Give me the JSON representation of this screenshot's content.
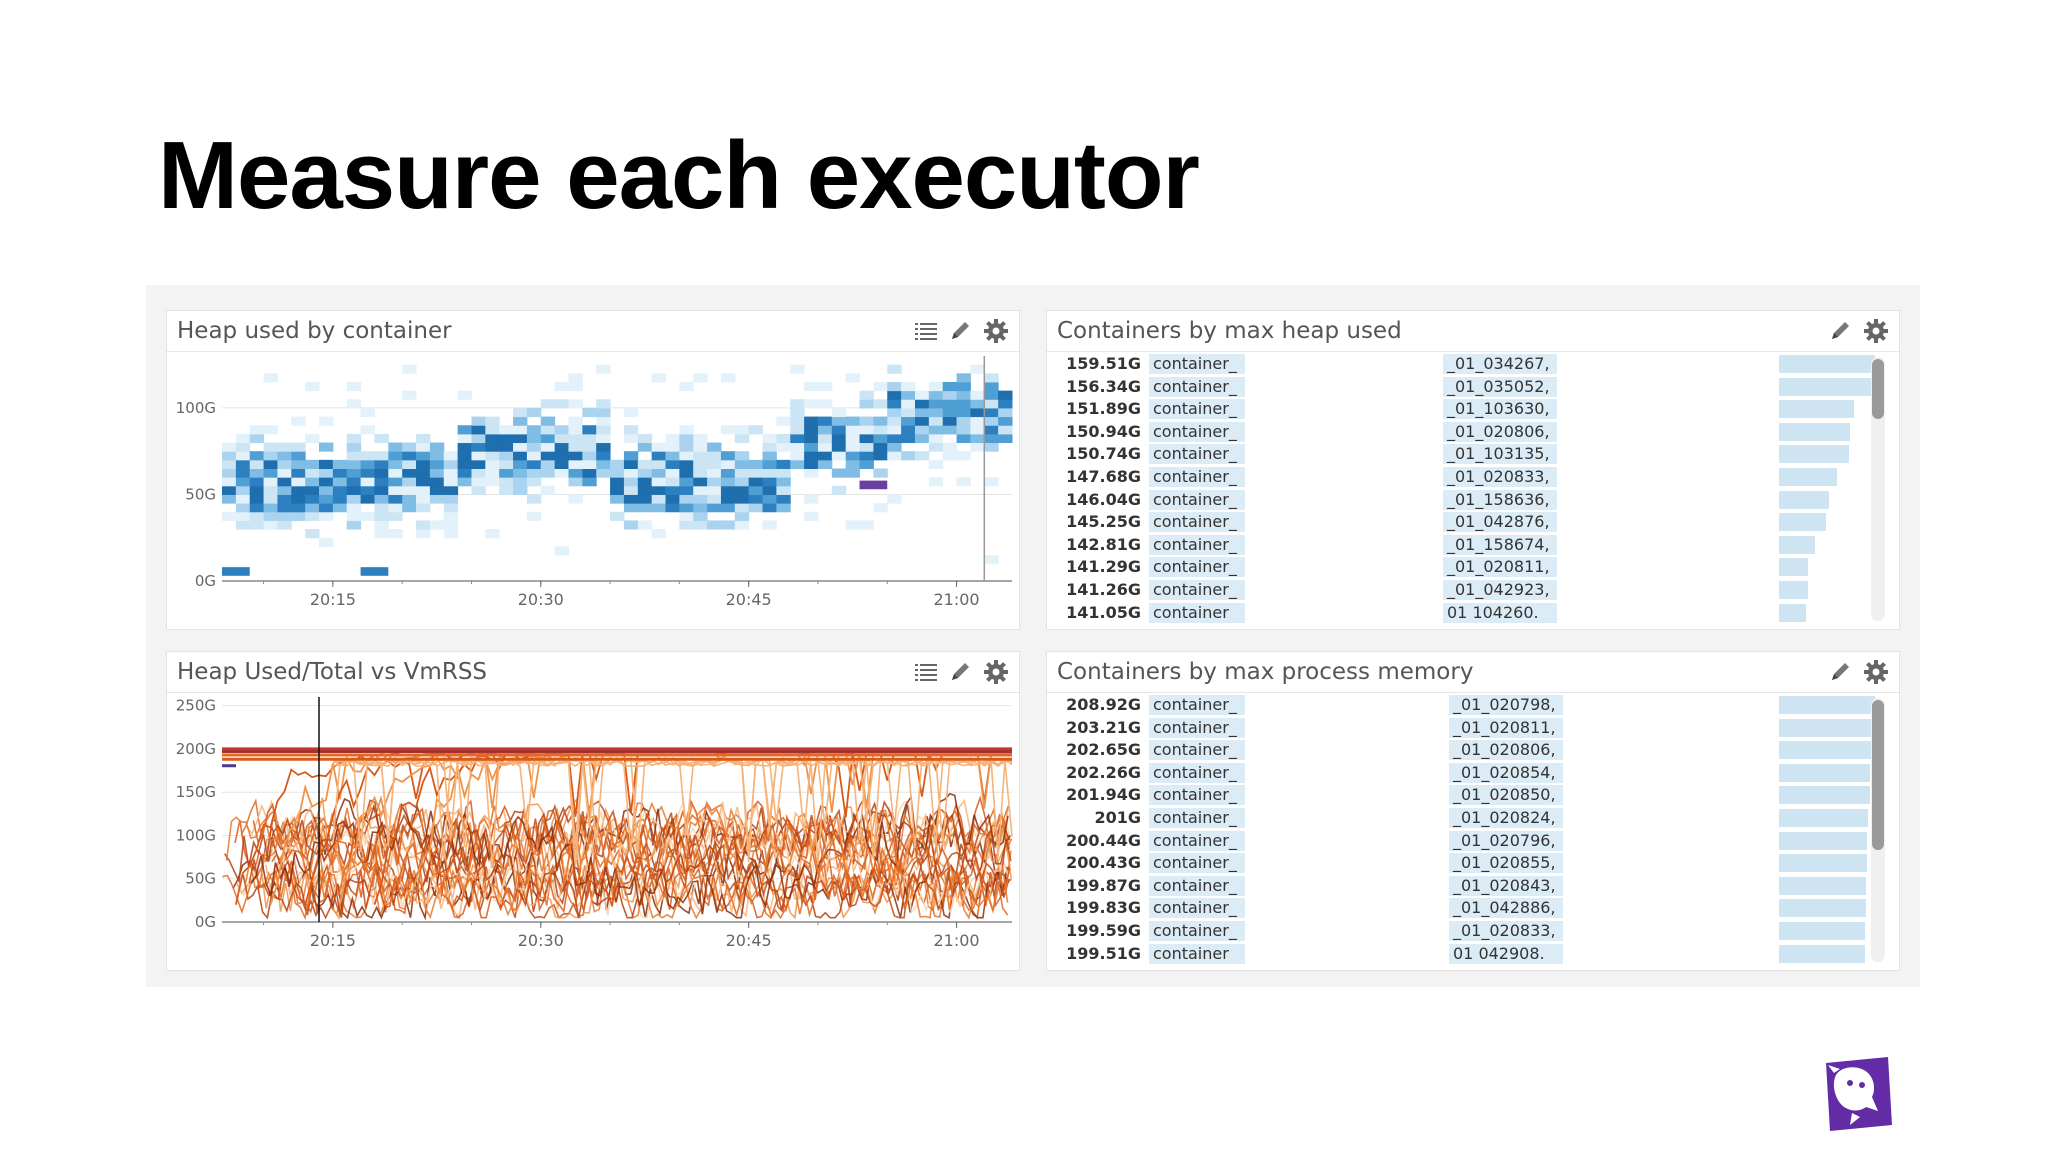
{
  "slide": {
    "title": "Measure each executor"
  },
  "widgets": {
    "heap_by_container": {
      "title": "Heap used by container"
    },
    "heap_vs_vmrss": {
      "title": "Heap Used/Total vs VmRSS"
    },
    "max_heap": {
      "title": "Containers by max heap used",
      "rows": [
        {
          "value": "159.51G",
          "tag": "container_",
          "id": "_01_034267,",
          "bar": 1.0
        },
        {
          "value": "156.34G",
          "tag": "container_",
          "id": "_01_035052,",
          "bar": 0.98
        },
        {
          "value": "151.89G",
          "tag": "container_",
          "id": "_01_103630,",
          "bar": 0.78
        },
        {
          "value": "150.94G",
          "tag": "container_",
          "id": "_01_020806,",
          "bar": 0.74
        },
        {
          "value": "150.74G",
          "tag": "container_",
          "id": "_01_103135,",
          "bar": 0.73
        },
        {
          "value": "147.68G",
          "tag": "container_",
          "id": "_01_020833,",
          "bar": 0.6
        },
        {
          "value": "146.04G",
          "tag": "container_",
          "id": "_01_158636,",
          "bar": 0.52
        },
        {
          "value": "145.25G",
          "tag": "container_",
          "id": "_01_042876,",
          "bar": 0.49
        },
        {
          "value": "142.81G",
          "tag": "container_",
          "id": "_01_158674,",
          "bar": 0.37
        },
        {
          "value": "141.29G",
          "tag": "container_",
          "id": "_01_020811,",
          "bar": 0.3
        },
        {
          "value": "141.26G",
          "tag": "container_",
          "id": "_01_042923,",
          "bar": 0.3
        },
        {
          "value": "141.05G",
          "tag": "container",
          "id": "01 104260.",
          "bar": 0.28
        }
      ]
    },
    "max_process": {
      "title": "Containers by max process memory",
      "rows": [
        {
          "value": "208.92G",
          "tag": "container_",
          "id": "_01_020798,",
          "bar": 1.0
        },
        {
          "value": "203.21G",
          "tag": "container_",
          "id": "_01_020811,",
          "bar": 0.97
        },
        {
          "value": "202.65G",
          "tag": "container_",
          "id": "_01_020806,",
          "bar": 0.96
        },
        {
          "value": "202.26G",
          "tag": "container_",
          "id": "_01_020854,",
          "bar": 0.95
        },
        {
          "value": "201.94G",
          "tag": "container_",
          "id": "_01_020850,",
          "bar": 0.95
        },
        {
          "value": "201G",
          "tag": "container_",
          "id": "_01_020824,",
          "bar": 0.93
        },
        {
          "value": "200.44G",
          "tag": "container_",
          "id": "_01_020796,",
          "bar": 0.92
        },
        {
          "value": "200.43G",
          "tag": "container_",
          "id": "_01_020855,",
          "bar": 0.92
        },
        {
          "value": "199.87G",
          "tag": "container_",
          "id": "_01_020843,",
          "bar": 0.91
        },
        {
          "value": "199.83G",
          "tag": "container_",
          "id": "_01_042886,",
          "bar": 0.91
        },
        {
          "value": "199.59G",
          "tag": "container_",
          "id": "_01_020833,",
          "bar": 0.9
        },
        {
          "value": "199.51G",
          "tag": "container",
          "id": "01 042908.",
          "bar": 0.9
        }
      ]
    }
  },
  "icons": {
    "list": "list-icon",
    "edit": "pencil-icon",
    "settings": "gear-icon",
    "logo": "datadog-logo-icon"
  },
  "colors": {
    "heat_light": "#d6ebf7",
    "heat_dark": "#1f6fae",
    "line_dark": "#8b2b0b",
    "line_light": "#f6b37a",
    "top_red": "#c0392b"
  },
  "chart_data": [
    {
      "type": "heatmap",
      "x_ticks": [
        "20:15",
        "20:30",
        "20:45",
        "21:00"
      ],
      "y_ticks": [
        "0G",
        "50G",
        "100G"
      ],
      "xlim": [
        "20:07",
        "21:04"
      ],
      "ylim": [
        0,
        130
      ],
      "grid": true
    },
    {
      "type": "line",
      "x_ticks": [
        "20:15",
        "20:30",
        "20:45",
        "21:00"
      ],
      "y_ticks": [
        "0G",
        "50G",
        "100G",
        "150G",
        "200G",
        "250G"
      ],
      "xlim": [
        "20:07",
        "21:04"
      ],
      "ylim": [
        0,
        260
      ],
      "grid": true,
      "series": [
        {
          "values": [
            200
          ]
        },
        {
          "values": [
            197
          ]
        },
        {
          "values": [
            193
          ]
        },
        {
          "values": [
            188
          ]
        }
      ]
    }
  ]
}
